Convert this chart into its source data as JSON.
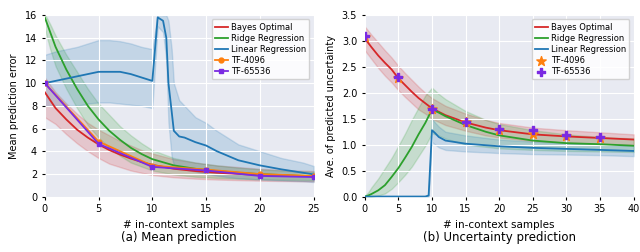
{
  "plot1": {
    "xlabel": "# in-context samples",
    "ylabel": "Mean prediction error",
    "caption": "(a) Mean prediction",
    "xlim": [
      0,
      25
    ],
    "ylim": [
      0,
      16
    ],
    "yticks": [
      0,
      2,
      4,
      6,
      8,
      10,
      12,
      14,
      16
    ],
    "xticks": [
      0,
      5,
      10,
      15,
      20,
      25
    ],
    "bayes_x": [
      0,
      1,
      2,
      3,
      4,
      5,
      6,
      7,
      8,
      9,
      10,
      12,
      14,
      16,
      18,
      20,
      22,
      24,
      25
    ],
    "bayes_y": [
      9.2,
      7.8,
      6.8,
      5.9,
      5.2,
      4.6,
      4.1,
      3.7,
      3.35,
      3.05,
      2.8,
      2.45,
      2.25,
      2.1,
      2.0,
      1.9,
      1.85,
      1.82,
      1.8
    ],
    "bayes_upper": [
      10.5,
      9.2,
      8.2,
      7.3,
      6.5,
      5.9,
      5.4,
      4.9,
      4.5,
      4.1,
      3.8,
      3.3,
      3.0,
      2.75,
      2.6,
      2.45,
      2.35,
      2.28,
      2.25
    ],
    "bayes_lower": [
      7.0,
      6.4,
      5.5,
      4.7,
      4.0,
      3.4,
      2.9,
      2.6,
      2.3,
      2.1,
      1.9,
      1.7,
      1.58,
      1.5,
      1.45,
      1.4,
      1.37,
      1.35,
      1.33
    ],
    "ridge_x": [
      0,
      0.5,
      1,
      2,
      3,
      4,
      5,
      6,
      7,
      8,
      9,
      10,
      12,
      14,
      16,
      18,
      20,
      22,
      24,
      25
    ],
    "ridge_y": [
      15.8,
      14.5,
      13.2,
      11.2,
      9.5,
      8.0,
      6.8,
      5.8,
      5.0,
      4.3,
      3.75,
      3.3,
      2.75,
      2.45,
      2.25,
      2.1,
      1.98,
      1.9,
      1.85,
      1.82
    ],
    "ridge_upper": [
      16.1,
      15.2,
      14.2,
      12.5,
      11.0,
      9.5,
      8.2,
      7.2,
      6.2,
      5.4,
      4.7,
      4.1,
      3.4,
      3.0,
      2.75,
      2.55,
      2.4,
      2.3,
      2.22,
      2.18
    ],
    "ridge_lower": [
      14.8,
      13.0,
      11.5,
      9.5,
      7.8,
      6.3,
      5.2,
      4.3,
      3.6,
      3.0,
      2.65,
      2.3,
      1.95,
      1.75,
      1.65,
      1.58,
      1.53,
      1.48,
      1.45,
      1.43
    ],
    "linear_x": [
      0,
      1,
      2,
      3,
      4,
      5,
      6,
      7,
      8,
      9,
      10,
      10.5,
      11.0,
      11.3,
      11.5,
      11.8,
      12.0,
      12.5,
      13.0,
      14,
      15,
      16,
      17,
      18,
      20,
      22,
      24,
      25
    ],
    "linear_y": [
      10.0,
      10.2,
      10.4,
      10.6,
      10.8,
      11.0,
      11.0,
      11.0,
      10.8,
      10.5,
      10.2,
      15.8,
      15.5,
      14.0,
      10.0,
      7.5,
      5.8,
      5.3,
      5.2,
      4.8,
      4.5,
      4.0,
      3.6,
      3.2,
      2.75,
      2.4,
      2.1,
      1.95
    ],
    "linear_upper": [
      12.5,
      12.8,
      13.0,
      13.2,
      13.5,
      13.8,
      13.8,
      13.7,
      13.5,
      13.2,
      13.0,
      16.1,
      16.0,
      16.0,
      15.5,
      13.0,
      10.0,
      8.5,
      8.0,
      7.0,
      6.5,
      5.8,
      5.2,
      4.6,
      4.0,
      3.4,
      3.0,
      2.7
    ],
    "linear_lower": [
      8.0,
      8.0,
      8.0,
      8.0,
      8.2,
      8.3,
      8.3,
      8.2,
      8.1,
      8.0,
      7.8,
      15.0,
      14.5,
      12.0,
      6.5,
      3.5,
      2.8,
      2.5,
      2.4,
      2.2,
      2.0,
      1.85,
      1.72,
      1.62,
      1.5,
      1.42,
      1.35,
      1.28
    ],
    "tf4096_x": [
      0,
      5,
      10,
      15,
      20,
      25
    ],
    "tf4096_y": [
      10.0,
      4.85,
      2.72,
      2.38,
      1.98,
      1.82
    ],
    "tf65536_x": [
      0,
      5,
      10,
      15,
      20,
      25
    ],
    "tf65536_y": [
      10.0,
      4.65,
      2.62,
      2.3,
      1.82,
      1.72
    ]
  },
  "plot2": {
    "xlabel": "# in-context samples",
    "ylabel": "Ave. of predicted uncertainty",
    "caption": "(b) Uncertainty prediction",
    "xlim": [
      0,
      40
    ],
    "ylim": [
      0.0,
      3.5
    ],
    "yticks": [
      0.0,
      0.5,
      1.0,
      1.5,
      2.0,
      2.5,
      3.0,
      3.5
    ],
    "xticks": [
      0,
      5,
      10,
      15,
      20,
      25,
      30,
      35,
      40
    ],
    "bayes_x": [
      0,
      1,
      2,
      3,
      4,
      5,
      6,
      7,
      8,
      9,
      10,
      12,
      15,
      18,
      20,
      25,
      30,
      35,
      40
    ],
    "bayes_y": [
      3.05,
      2.88,
      2.72,
      2.58,
      2.45,
      2.28,
      2.15,
      2.02,
      1.9,
      1.8,
      1.7,
      1.57,
      1.43,
      1.33,
      1.28,
      1.2,
      1.16,
      1.13,
      1.1
    ],
    "bayes_upper": [
      3.28,
      3.12,
      2.97,
      2.82,
      2.68,
      2.52,
      2.38,
      2.25,
      2.12,
      2.0,
      1.9,
      1.75,
      1.6,
      1.48,
      1.42,
      1.33,
      1.28,
      1.24,
      1.2
    ],
    "bayes_lower": [
      2.82,
      2.65,
      2.48,
      2.33,
      2.2,
      2.05,
      1.92,
      1.8,
      1.68,
      1.6,
      1.5,
      1.38,
      1.27,
      1.18,
      1.14,
      1.07,
      1.04,
      1.02,
      1.0
    ],
    "ridge_x": [
      0,
      0.5,
      1,
      2,
      3,
      4,
      5,
      6,
      7,
      8,
      9,
      10,
      11,
      12,
      15,
      18,
      20,
      25,
      30,
      35,
      40
    ],
    "ridge_y": [
      0.0,
      0.02,
      0.05,
      0.12,
      0.22,
      0.38,
      0.55,
      0.75,
      0.96,
      1.2,
      1.42,
      1.68,
      1.62,
      1.55,
      1.38,
      1.25,
      1.18,
      1.08,
      1.03,
      1.01,
      0.98
    ],
    "ridge_upper": [
      0.02,
      0.08,
      0.18,
      0.35,
      0.55,
      0.75,
      0.98,
      1.22,
      1.48,
      1.72,
      1.95,
      2.1,
      1.98,
      1.88,
      1.65,
      1.48,
      1.4,
      1.28,
      1.2,
      1.15,
      1.12
    ],
    "ridge_lower": [
      0.0,
      0.0,
      0.0,
      0.02,
      0.06,
      0.15,
      0.28,
      0.42,
      0.58,
      0.78,
      0.98,
      1.22,
      1.18,
      1.12,
      1.0,
      0.96,
      0.93,
      0.9,
      0.88,
      0.87,
      0.86
    ],
    "linear_x": [
      0,
      1,
      2,
      3,
      4,
      5,
      6,
      7,
      8,
      9,
      9.5,
      10,
      10.5,
      11,
      12,
      15,
      20,
      25,
      30,
      35,
      40
    ],
    "linear_y": [
      0.0,
      0.0,
      0.0,
      0.0,
      0.0,
      0.0,
      0.0,
      0.0,
      0.0,
      0.0,
      0.02,
      1.28,
      1.22,
      1.15,
      1.08,
      1.02,
      0.97,
      0.94,
      0.92,
      0.9,
      0.88
    ],
    "linear_upper": [
      0.01,
      0.01,
      0.01,
      0.01,
      0.01,
      0.01,
      0.01,
      0.01,
      0.01,
      0.01,
      0.05,
      1.5,
      1.42,
      1.35,
      1.25,
      1.18,
      1.1,
      1.06,
      1.03,
      1.0,
      0.98
    ],
    "linear_lower": [
      0.0,
      0.0,
      0.0,
      0.0,
      0.0,
      0.0,
      0.0,
      0.0,
      0.0,
      0.0,
      0.0,
      1.05,
      1.0,
      0.95,
      0.9,
      0.87,
      0.84,
      0.82,
      0.81,
      0.8,
      0.78
    ],
    "tf4096_x": [
      0,
      5,
      10,
      15,
      20,
      25,
      30,
      35
    ],
    "tf4096_y": [
      3.08,
      2.28,
      1.68,
      1.43,
      1.28,
      1.2,
      1.16,
      1.13
    ],
    "tf65536_x": [
      0,
      5,
      10,
      15,
      20,
      25,
      30,
      35
    ],
    "tf65536_y": [
      3.1,
      2.3,
      1.68,
      1.43,
      1.3,
      1.28,
      1.18,
      1.14
    ]
  },
  "colors": {
    "bayes": "#d62728",
    "ridge": "#2ca02c",
    "linear": "#1f77b4",
    "tf4096": "#ff7f0e",
    "tf65536": "#7b2be2"
  },
  "bg_color": "#e8eaf2"
}
